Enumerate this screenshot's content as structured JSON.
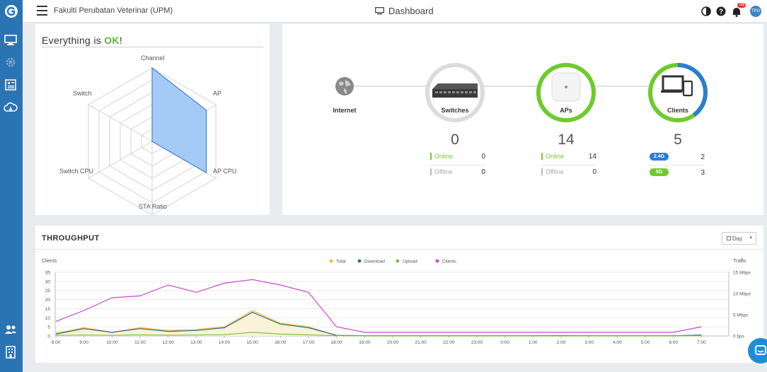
{
  "topbar": {
    "site_name": "Fakulti Perubatan Veterinar (UPM)",
    "page_title": "Dashboard",
    "notif_count": "788",
    "avatar_initials": "TPG"
  },
  "status": {
    "title_prefix": "Everything is ",
    "title_ok": "OK",
    "title_suffix": "!",
    "radar_labels": [
      "Channel",
      "AP",
      "AP CPU",
      "STA Ratio",
      "Switch CPU",
      "Switch"
    ],
    "radar_values": [
      1.0,
      0.85,
      0.85,
      0.0,
      0.0,
      0.0
    ],
    "fill_color": "#a3cbf5",
    "stroke_color": "#4a7fd4"
  },
  "topology": {
    "internet": {
      "label": "Internet"
    },
    "switches": {
      "label": "Switches",
      "count": "0",
      "online_label": "Online",
      "online": "0",
      "offline_label": "Offline",
      "offline": "0",
      "ring_color": "#d9d9d9"
    },
    "aps": {
      "label": "APs",
      "count": "14",
      "online_label": "Online",
      "online": "14",
      "offline_label": "Offline",
      "offline": "0",
      "ring_color": "#6ecb2b"
    },
    "clients": {
      "label": "Clients",
      "count": "5",
      "band1_label": "2.4G",
      "band1": "2",
      "band2_label": "5G",
      "band2": "3",
      "ring_main": "#6ecb2b",
      "ring_accent": "#2a7fd0"
    }
  },
  "throughput": {
    "title": "THROUGHPUT",
    "range_select": "Day"
  },
  "chart_data": {
    "type": "line",
    "title": "",
    "ylabel": "Clients",
    "y2label": "Traffic",
    "ylim": [
      0,
      35
    ],
    "yticks": [
      "35",
      "30",
      "25",
      "20",
      "15",
      "10",
      "5",
      "0"
    ],
    "y2ticks": [
      "15 Mbps",
      "10 Mbps",
      "5 Mbps",
      "0 bps"
    ],
    "y2lim": [
      0,
      15
    ],
    "x": [
      "8:00",
      "9:00",
      "10:00",
      "11:00",
      "12:00",
      "13:00",
      "14:00",
      "15:00",
      "16:00",
      "17:00",
      "18:00",
      "19:00",
      "20:00",
      "21:00",
      "22:00",
      "23:00",
      "0:00",
      "1:00",
      "2:00",
      "3:00",
      "4:00",
      "5:00",
      "6:00",
      "7:00"
    ],
    "legend": "top-center",
    "series": [
      {
        "name": "Total",
        "color": "#f5b82e",
        "values": [
          1.5,
          4.5,
          2,
          4.5,
          3,
          3.5,
          5,
          14,
          7,
          5,
          0.3,
          0.1,
          0.1,
          0.1,
          0.1,
          0.1,
          0.1,
          0.1,
          0.2,
          0.1,
          0.1,
          0.1,
          0.1,
          0.5
        ]
      },
      {
        "name": "Download",
        "color": "#2a6f8f",
        "values": [
          1,
          4,
          2,
          4,
          2.5,
          3,
          4.5,
          13,
          6.5,
          4.5,
          0.3,
          0.1,
          0.1,
          0.1,
          0.1,
          0.1,
          0.1,
          0.1,
          0.2,
          0.1,
          0.1,
          0.1,
          0.1,
          0.5
        ]
      },
      {
        "name": "Upload",
        "color": "#7cc242",
        "values": [
          0.3,
          0.5,
          0.3,
          0.6,
          0.4,
          0.5,
          0.7,
          2,
          1,
          0.6,
          0.1,
          0,
          0,
          0,
          0,
          0,
          0,
          0,
          0,
          0,
          0,
          0,
          0,
          0.1
        ]
      },
      {
        "name": "Clients",
        "color": "#c946d8",
        "values": [
          8,
          14,
          21,
          22,
          28,
          24,
          29,
          31,
          28,
          24,
          5,
          2,
          2,
          2,
          2,
          2,
          2,
          2,
          2,
          2,
          2,
          2,
          2,
          5
        ]
      }
    ]
  }
}
